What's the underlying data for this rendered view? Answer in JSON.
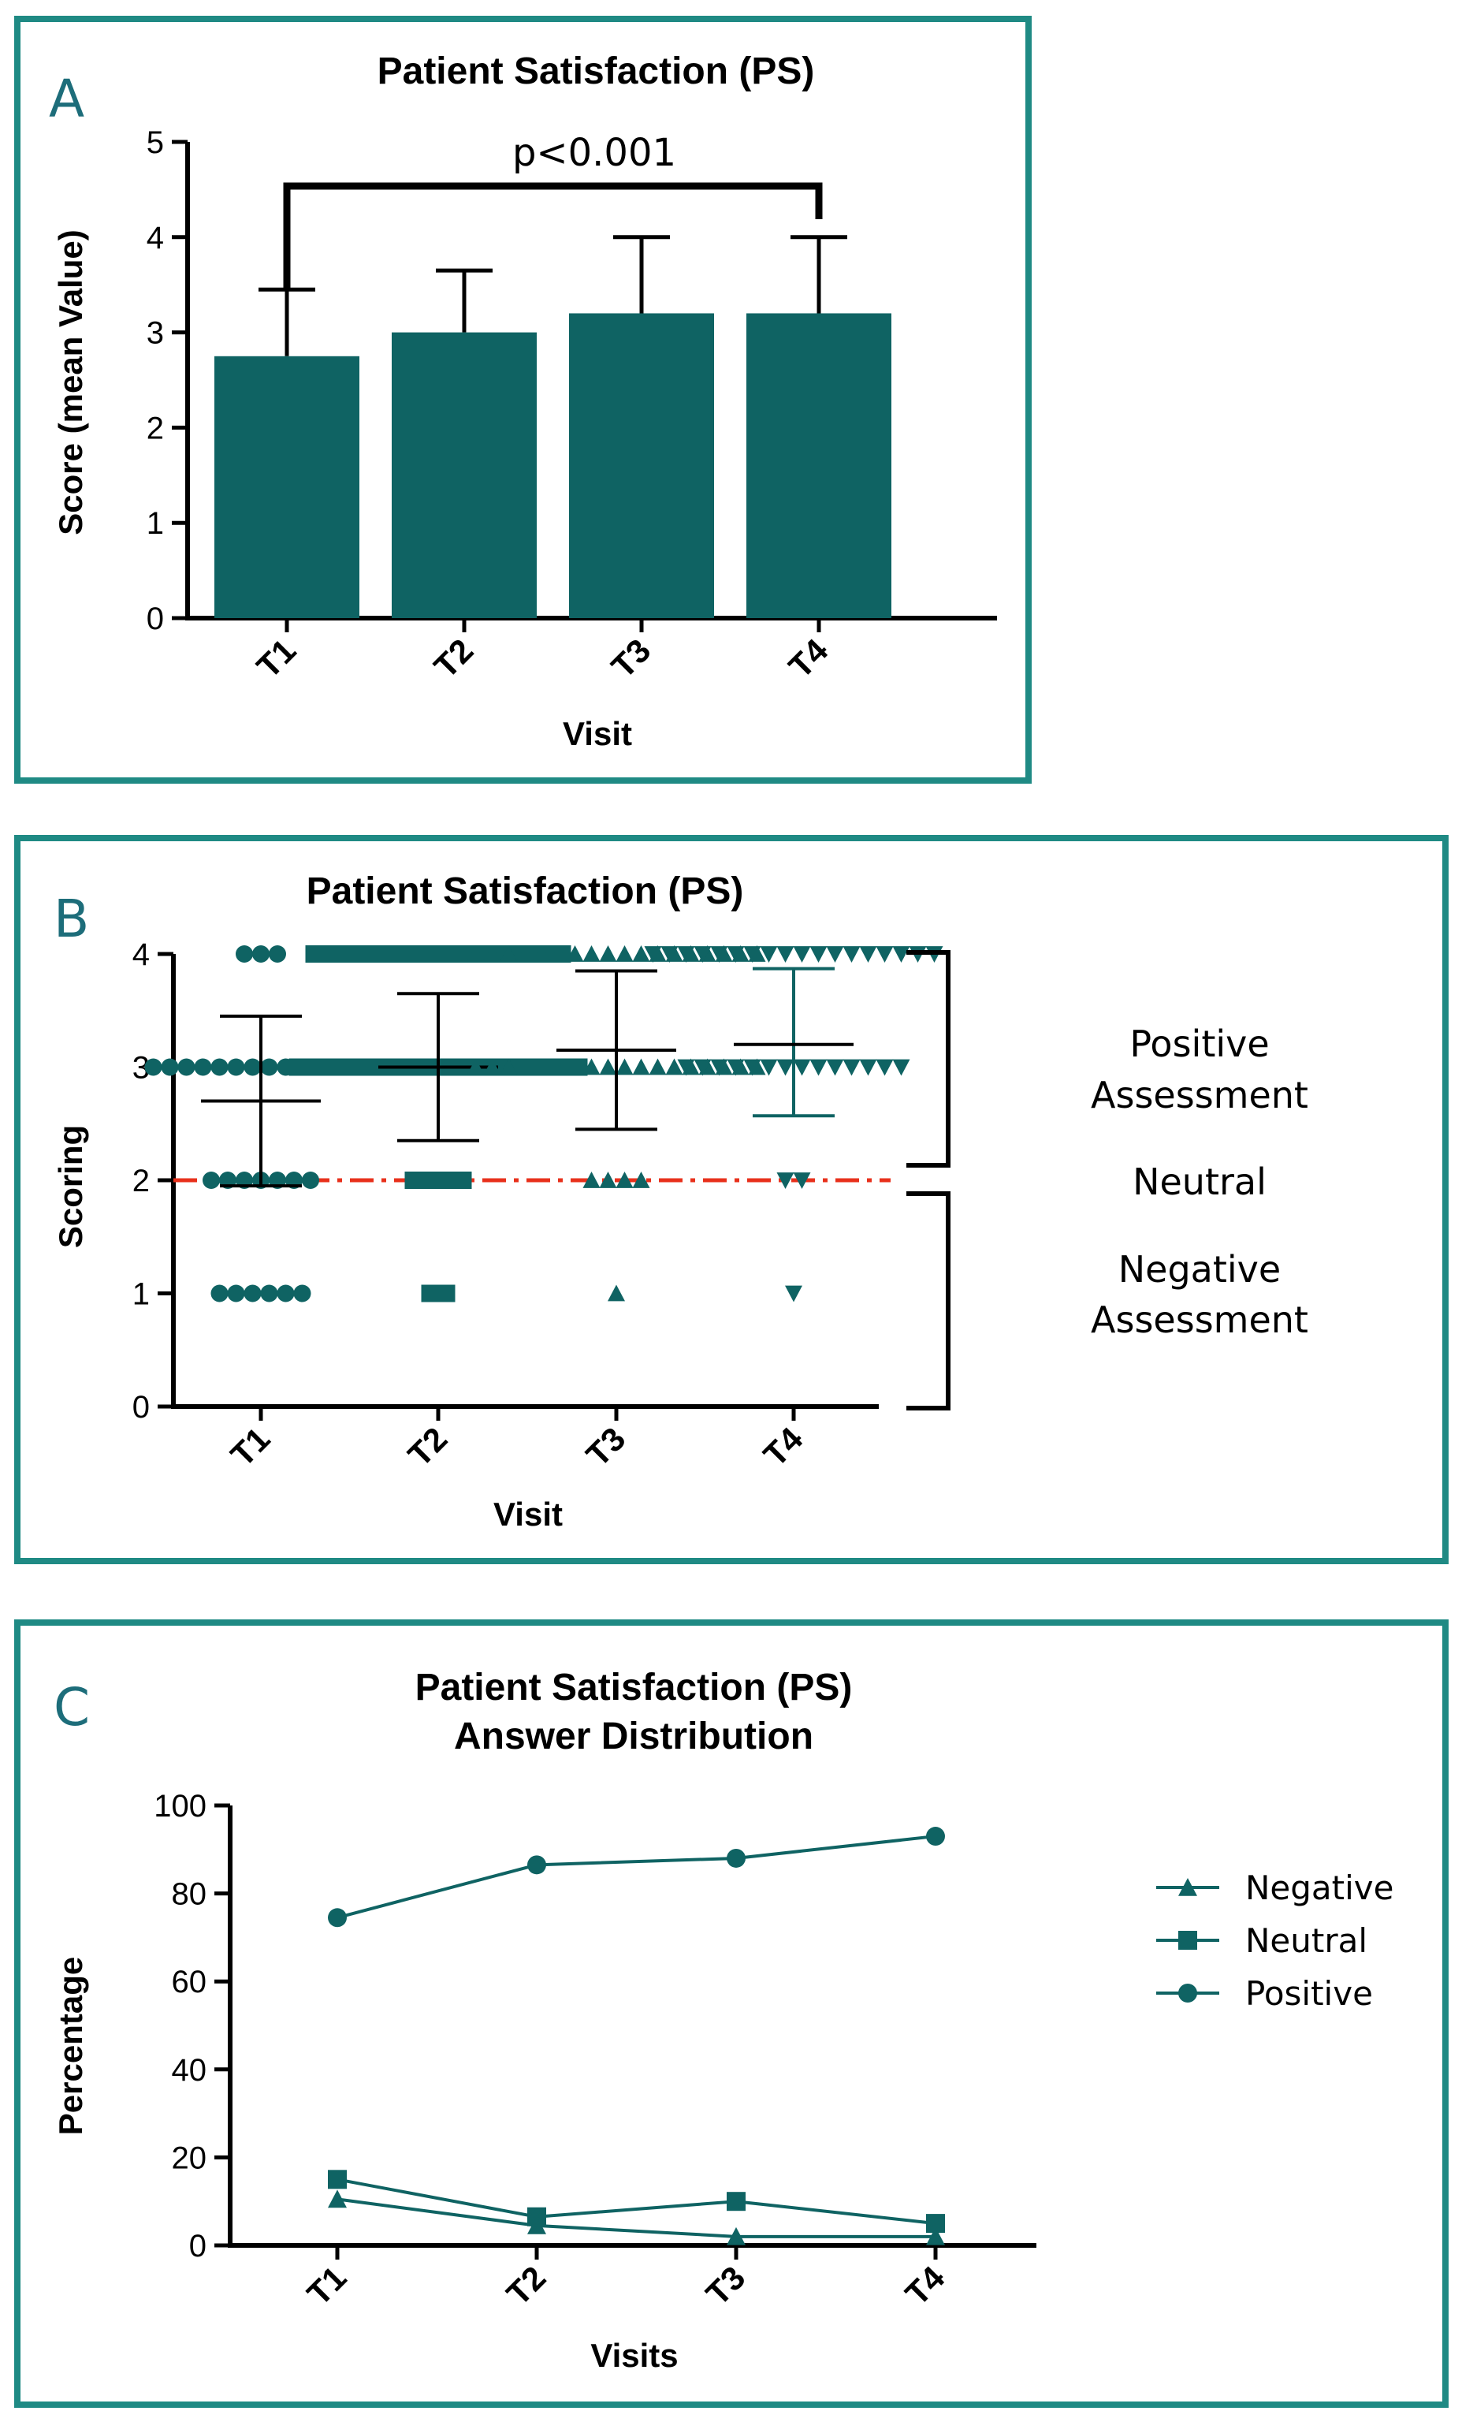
{
  "colors": {
    "series": "#0f6363",
    "border": "#1f8a84",
    "reference": "#e8301b",
    "letter": "#1d6d7a"
  },
  "panels": {
    "A": {
      "letter": "A",
      "annotation": "p<0.001"
    },
    "B": {
      "letter": "B",
      "labels": {
        "positive": "Positive",
        "assessment": "Assessment",
        "neutral": "Neutral",
        "negative": "Negative"
      }
    },
    "C": {
      "letter": "C"
    }
  },
  "chart_data": [
    {
      "type": "bar",
      "title": "Patient Satisfaction (PS)",
      "xlabel": "Visit",
      "ylabel": "Score (mean Value)",
      "categories": [
        "T1",
        "T2",
        "T3",
        "T4"
      ],
      "values": [
        2.75,
        3.0,
        3.2,
        3.2
      ],
      "errors_upper": [
        3.45,
        3.65,
        4.0,
        4.0
      ],
      "ylim": [
        0,
        5
      ],
      "yticks": [
        "0",
        "1",
        "2",
        "3",
        "4",
        "5"
      ],
      "significance": {
        "from": "T1",
        "to": "T4",
        "label": "p<0.001"
      }
    },
    {
      "type": "scatter",
      "title": "Patient Satisfaction (PS)",
      "xlabel": "Visit",
      "ylabel": "Scoring",
      "categories": [
        "T1",
        "T2",
        "T3",
        "T4"
      ],
      "markers": [
        "circle",
        "square",
        "triangle-up",
        "triangle-down"
      ],
      "ylim": [
        0,
        4
      ],
      "yticks": [
        "0",
        "1",
        "2",
        "3",
        "4"
      ],
      "reference_line": 2,
      "groups": [
        {
          "name": "T1",
          "mean": 2.7,
          "sd_low": 1.95,
          "sd_high": 3.45,
          "points": [
            {
              "y": 4,
              "n": 3
            },
            {
              "y": 3,
              "n": 14
            },
            {
              "y": 2,
              "n": 7
            },
            {
              "y": 1,
              "n": 6
            }
          ]
        },
        {
          "name": "T2",
          "mean": 3.0,
          "sd_low": 2.35,
          "sd_high": 3.65,
          "points": [
            {
              "y": 4,
              "n": 16
            },
            {
              "y": 3,
              "n": 18
            },
            {
              "y": 2,
              "n": 4
            },
            {
              "y": 1,
              "n": 2
            }
          ]
        },
        {
          "name": "T3",
          "mean": 3.15,
          "sd_low": 2.45,
          "sd_high": 3.85,
          "points": [
            {
              "y": 4,
              "n": 18
            },
            {
              "y": 3,
              "n": 18
            },
            {
              "y": 2,
              "n": 4
            },
            {
              "y": 1,
              "n": 1
            }
          ]
        },
        {
          "name": "T4",
          "mean": 3.2,
          "sd_low": 2.57,
          "sd_high": 3.87,
          "points": [
            {
              "y": 4,
              "n": 18
            },
            {
              "y": 3,
              "n": 14
            },
            {
              "y": 2,
              "n": 2
            },
            {
              "y": 1,
              "n": 1
            }
          ]
        }
      ]
    },
    {
      "type": "line",
      "title": "Patient Satisfaction (PS)",
      "subtitle": "Answer Distribution",
      "xlabel": "Visits",
      "ylabel": "Percentage",
      "categories": [
        "T1",
        "T2",
        "T3",
        "T4"
      ],
      "ylim": [
        0,
        100
      ],
      "yticks": [
        "0",
        "20",
        "40",
        "60",
        "80",
        "100"
      ],
      "series": [
        {
          "name": "Negative",
          "marker": "triangle",
          "values": [
            10.5,
            4.5,
            2,
            2
          ]
        },
        {
          "name": "Neutral",
          "marker": "square",
          "values": [
            15,
            6.5,
            10,
            5
          ]
        },
        {
          "name": "Positive",
          "marker": "circle",
          "values": [
            74.5,
            86.5,
            88,
            93
          ]
        }
      ]
    }
  ]
}
